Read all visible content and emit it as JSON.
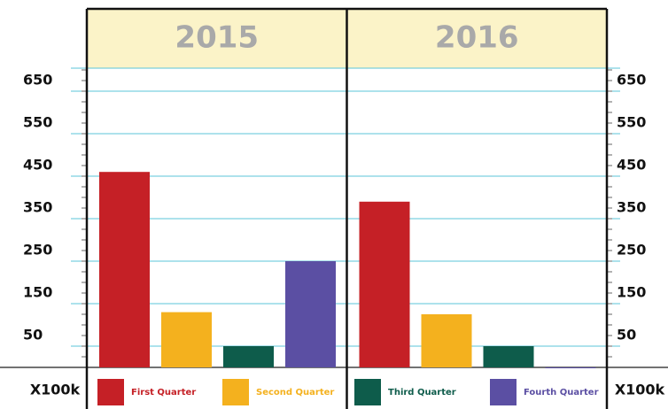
{
  "chart_data": {
    "type": "bar",
    "categories": [
      "2015",
      "2016"
    ],
    "series": [
      {
        "name": "First Quarter",
        "color": "#c52026",
        "values": [
          460,
          390
        ]
      },
      {
        "name": "Second Quarter",
        "color": "#f4b11e",
        "values": [
          130,
          125
        ]
      },
      {
        "name": "Third Quarter",
        "color": "#0e5c4b",
        "values": [
          50,
          50
        ]
      },
      {
        "name": "Fourth Quarter",
        "color": "#5b4fa3",
        "values": [
          250,
          0
        ]
      }
    ],
    "ylim": [
      0,
      700
    ],
    "yticks": [
      50,
      150,
      250,
      350,
      450,
      550,
      650
    ],
    "y_unit_label": "X100k",
    "grid": true
  }
}
